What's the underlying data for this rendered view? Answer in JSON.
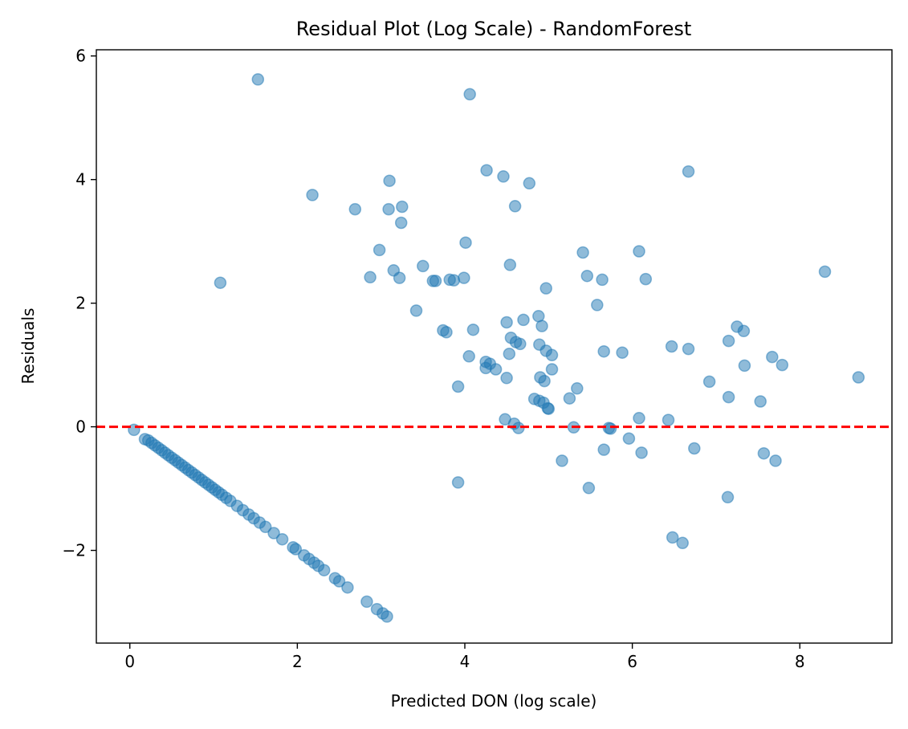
{
  "chart_data": {
    "type": "scatter",
    "title": "Residual Plot (Log Scale) - RandomForest",
    "xlabel": "Predicted DON (log scale)",
    "ylabel": "Residuals",
    "xlim": [
      -0.4,
      9.1
    ],
    "ylim": [
      -3.5,
      6.1
    ],
    "xticks": [
      0,
      2,
      4,
      6,
      8
    ],
    "xtick_labels": [
      "0",
      "2",
      "4",
      "6",
      "8"
    ],
    "yticks": [
      -2,
      0,
      2,
      4,
      6
    ],
    "ytick_labels": [
      "−2",
      "0",
      "2",
      "4",
      "6"
    ],
    "grid": false,
    "legend": "none",
    "colors": {
      "points": "#1f77b4",
      "reference_line": "#ff0000"
    },
    "reference_line": {
      "y": 0,
      "style": "dashed"
    },
    "series": [
      {
        "points": [
          [
            0.05,
            -0.05
          ],
          [
            0.18,
            -0.2
          ],
          [
            0.22,
            -0.22
          ],
          [
            0.26,
            -0.26
          ],
          [
            0.3,
            -0.3
          ],
          [
            0.34,
            -0.34
          ],
          [
            0.38,
            -0.38
          ],
          [
            0.42,
            -0.42
          ],
          [
            0.46,
            -0.46
          ],
          [
            0.5,
            -0.5
          ],
          [
            0.54,
            -0.54
          ],
          [
            0.58,
            -0.58
          ],
          [
            0.62,
            -0.62
          ],
          [
            0.66,
            -0.66
          ],
          [
            0.7,
            -0.7
          ],
          [
            0.74,
            -0.74
          ],
          [
            0.78,
            -0.78
          ],
          [
            0.82,
            -0.82
          ],
          [
            0.86,
            -0.86
          ],
          [
            0.9,
            -0.9
          ],
          [
            0.94,
            -0.94
          ],
          [
            0.98,
            -0.98
          ],
          [
            1.02,
            -1.02
          ],
          [
            1.06,
            -1.06
          ],
          [
            1.1,
            -1.1
          ],
          [
            1.15,
            -1.15
          ],
          [
            1.2,
            -1.2
          ],
          [
            1.28,
            -1.28
          ],
          [
            1.35,
            -1.35
          ],
          [
            1.42,
            -1.42
          ],
          [
            1.48,
            -1.48
          ],
          [
            1.55,
            -1.55
          ],
          [
            1.62,
            -1.62
          ],
          [
            1.72,
            -1.72
          ],
          [
            1.82,
            -1.82
          ],
          [
            1.95,
            -1.95
          ],
          [
            1.98,
            -1.98
          ],
          [
            2.08,
            -2.08
          ],
          [
            2.14,
            -2.14
          ],
          [
            2.2,
            -2.2
          ],
          [
            2.25,
            -2.25
          ],
          [
            2.32,
            -2.32
          ],
          [
            2.45,
            -2.45
          ],
          [
            2.5,
            -2.5
          ],
          [
            2.6,
            -2.6
          ],
          [
            2.83,
            -2.83
          ],
          [
            2.95,
            -2.95
          ],
          [
            3.02,
            -3.02
          ],
          [
            3.07,
            -3.07
          ],
          [
            1.53,
            5.62
          ],
          [
            4.06,
            5.38
          ],
          [
            4.26,
            4.15
          ],
          [
            4.46,
            4.05
          ],
          [
            4.77,
            3.94
          ],
          [
            6.67,
            4.13
          ],
          [
            3.1,
            3.98
          ],
          [
            2.18,
            3.75
          ],
          [
            2.69,
            3.52
          ],
          [
            3.09,
            3.52
          ],
          [
            3.25,
            3.56
          ],
          [
            3.24,
            3.3
          ],
          [
            4.6,
            3.57
          ],
          [
            4.01,
            2.98
          ],
          [
            2.98,
            2.86
          ],
          [
            3.5,
            2.6
          ],
          [
            3.15,
            2.53
          ],
          [
            3.22,
            2.41
          ],
          [
            2.87,
            2.42
          ],
          [
            3.62,
            2.36
          ],
          [
            3.65,
            2.36
          ],
          [
            3.82,
            2.38
          ],
          [
            3.87,
            2.37
          ],
          [
            3.99,
            2.41
          ],
          [
            4.54,
            2.62
          ],
          [
            4.97,
            2.24
          ],
          [
            5.41,
            2.82
          ],
          [
            5.46,
            2.44
          ],
          [
            5.64,
            2.38
          ],
          [
            6.08,
            2.84
          ],
          [
            6.16,
            2.39
          ],
          [
            8.3,
            2.51
          ],
          [
            1.08,
            2.33
          ],
          [
            3.42,
            1.88
          ],
          [
            4.5,
            1.69
          ],
          [
            4.7,
            1.73
          ],
          [
            4.88,
            1.79
          ],
          [
            4.92,
            1.63
          ],
          [
            4.1,
            1.57
          ],
          [
            3.74,
            1.56
          ],
          [
            3.78,
            1.53
          ],
          [
            4.55,
            1.44
          ],
          [
            4.61,
            1.37
          ],
          [
            4.66,
            1.34
          ],
          [
            5.58,
            1.97
          ],
          [
            4.05,
            1.14
          ],
          [
            4.25,
            1.05
          ],
          [
            4.3,
            1.02
          ],
          [
            4.25,
            0.95
          ],
          [
            4.37,
            0.93
          ],
          [
            4.53,
            1.18
          ],
          [
            4.89,
            1.33
          ],
          [
            4.97,
            1.23
          ],
          [
            5.04,
            1.16
          ],
          [
            4.95,
            0.74
          ],
          [
            5.04,
            0.93
          ],
          [
            4.9,
            0.8
          ],
          [
            4.5,
            0.79
          ],
          [
            3.92,
            0.65
          ],
          [
            4.83,
            0.45
          ],
          [
            4.89,
            0.42
          ],
          [
            4.94,
            0.39
          ],
          [
            4.99,
            0.3
          ],
          [
            5.0,
            0.29
          ],
          [
            5.25,
            0.46
          ],
          [
            5.34,
            0.62
          ],
          [
            5.66,
            1.22
          ],
          [
            5.88,
            1.2
          ],
          [
            6.47,
            1.3
          ],
          [
            6.67,
            1.26
          ],
          [
            6.92,
            0.73
          ],
          [
            7.15,
            1.39
          ],
          [
            7.25,
            1.62
          ],
          [
            7.33,
            1.55
          ],
          [
            7.34,
            0.99
          ],
          [
            7.67,
            1.13
          ],
          [
            7.79,
            1.0
          ],
          [
            7.15,
            0.48
          ],
          [
            7.53,
            0.41
          ],
          [
            8.7,
            0.8
          ],
          [
            4.48,
            0.12
          ],
          [
            4.59,
            0.05
          ],
          [
            4.64,
            -0.02
          ],
          [
            5.3,
            -0.01
          ],
          [
            5.72,
            -0.02
          ],
          [
            5.74,
            -0.03
          ],
          [
            6.08,
            0.14
          ],
          [
            6.43,
            0.11
          ],
          [
            5.96,
            -0.19
          ],
          [
            5.66,
            -0.37
          ],
          [
            6.11,
            -0.42
          ],
          [
            6.74,
            -0.35
          ],
          [
            7.57,
            -0.43
          ],
          [
            7.71,
            -0.55
          ],
          [
            5.16,
            -0.55
          ],
          [
            5.48,
            -0.99
          ],
          [
            3.92,
            -0.9
          ],
          [
            7.14,
            -1.14
          ],
          [
            6.48,
            -1.79
          ],
          [
            6.6,
            -1.88
          ]
        ]
      }
    ]
  }
}
